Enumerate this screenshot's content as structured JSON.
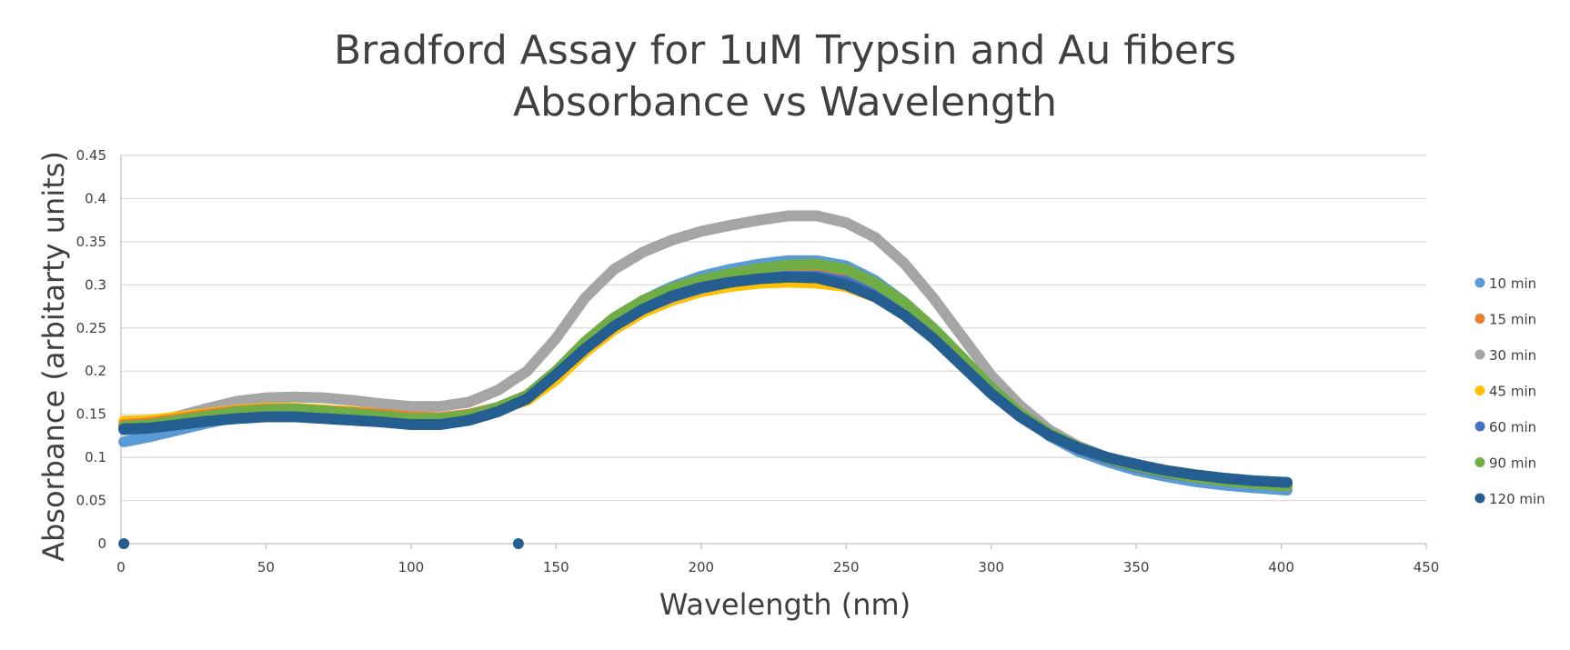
{
  "chart_data": {
    "type": "scatter",
    "title": [
      "Bradford Assay for 1uM Trypsin and Au fibers",
      "Absorbance vs Wavelength"
    ],
    "xlabel": "Wavelength (nm)",
    "ylabel": "Absorbance (arbitarty units)",
    "xlim": [
      0,
      450
    ],
    "ylim": [
      0,
      0.45
    ],
    "xticks": [
      "0",
      "50",
      "100",
      "150",
      "200",
      "250",
      "300",
      "350",
      "400",
      "450"
    ],
    "yticks": [
      "0",
      "0.05",
      "0.1",
      "0.15",
      "0.2",
      "0.25",
      "0.3",
      "0.35",
      "0.4",
      "0.45"
    ],
    "grid": true,
    "legend_position": "right",
    "series": [
      {
        "name": "10 min",
        "color": "#5b9bd5",
        "x": [
          1,
          10,
          20,
          30,
          40,
          50,
          60,
          70,
          80,
          90,
          100,
          110,
          120,
          130,
          140,
          150,
          160,
          170,
          180,
          190,
          200,
          210,
          220,
          230,
          240,
          250,
          260,
          270,
          280,
          290,
          300,
          310,
          320,
          330,
          340,
          350,
          360,
          370,
          380,
          390,
          402
        ],
        "y": [
          0.118,
          0.124,
          0.132,
          0.14,
          0.147,
          0.15,
          0.15,
          0.148,
          0.146,
          0.143,
          0.14,
          0.14,
          0.145,
          0.155,
          0.172,
          0.2,
          0.232,
          0.26,
          0.282,
          0.298,
          0.31,
          0.318,
          0.324,
          0.328,
          0.328,
          0.322,
          0.305,
          0.28,
          0.248,
          0.215,
          0.18,
          0.15,
          0.125,
          0.107,
          0.095,
          0.085,
          0.078,
          0.072,
          0.068,
          0.065,
          0.062
        ]
      },
      {
        "name": "15 min",
        "color": "#ed7d31",
        "x": [
          1,
          10,
          20,
          30,
          40,
          50,
          60,
          70,
          80,
          90,
          100,
          110,
          120,
          130,
          140,
          150,
          160,
          170,
          180,
          190,
          200,
          210,
          220,
          230,
          240,
          250,
          260,
          270,
          280,
          290,
          300,
          310,
          320,
          330,
          340,
          350,
          360,
          370,
          380,
          390,
          402
        ],
        "y": [
          0.138,
          0.14,
          0.145,
          0.15,
          0.154,
          0.156,
          0.156,
          0.154,
          0.152,
          0.15,
          0.147,
          0.146,
          0.15,
          0.158,
          0.172,
          0.198,
          0.228,
          0.255,
          0.275,
          0.29,
          0.3,
          0.307,
          0.312,
          0.314,
          0.314,
          0.31,
          0.298,
          0.276,
          0.248,
          0.215,
          0.18,
          0.15,
          0.127,
          0.11,
          0.098,
          0.089,
          0.082,
          0.077,
          0.073,
          0.07,
          0.067
        ]
      },
      {
        "name": "30 min",
        "color": "#a5a5a5",
        "x": [
          1,
          10,
          20,
          30,
          40,
          50,
          60,
          70,
          80,
          90,
          100,
          110,
          120,
          130,
          140,
          150,
          160,
          170,
          180,
          190,
          200,
          210,
          220,
          230,
          240,
          250,
          260,
          270,
          280,
          290,
          300,
          310,
          320,
          330,
          340,
          350,
          360,
          370,
          380,
          390,
          402
        ],
        "y": [
          0.134,
          0.14,
          0.148,
          0.157,
          0.165,
          0.169,
          0.17,
          0.169,
          0.166,
          0.162,
          0.159,
          0.159,
          0.164,
          0.178,
          0.2,
          0.238,
          0.285,
          0.318,
          0.338,
          0.352,
          0.362,
          0.369,
          0.375,
          0.38,
          0.38,
          0.372,
          0.355,
          0.325,
          0.285,
          0.24,
          0.195,
          0.16,
          0.132,
          0.113,
          0.1,
          0.09,
          0.083,
          0.077,
          0.073,
          0.07,
          0.068
        ]
      },
      {
        "name": "45 min",
        "color": "#ffc000",
        "x": [
          1,
          10,
          20,
          30,
          40,
          50,
          60,
          70,
          80,
          90,
          100,
          110,
          120,
          130,
          140,
          150,
          160,
          170,
          180,
          190,
          200,
          210,
          220,
          230,
          240,
          250,
          260,
          270,
          280,
          290,
          300,
          310,
          320,
          330,
          340,
          350,
          360,
          370,
          380,
          390,
          402
        ],
        "y": [
          0.142,
          0.143,
          0.147,
          0.151,
          0.155,
          0.157,
          0.157,
          0.155,
          0.153,
          0.15,
          0.147,
          0.146,
          0.149,
          0.156,
          0.166,
          0.19,
          0.222,
          0.248,
          0.268,
          0.282,
          0.292,
          0.298,
          0.302,
          0.303,
          0.302,
          0.298,
          0.286,
          0.268,
          0.24,
          0.208,
          0.175,
          0.148,
          0.126,
          0.11,
          0.098,
          0.089,
          0.082,
          0.077,
          0.073,
          0.07,
          0.067
        ]
      },
      {
        "name": "60 min",
        "color": "#4472c4",
        "x": [
          1,
          10,
          20,
          30,
          40,
          50,
          60,
          70,
          80,
          90,
          100,
          110,
          120,
          130,
          140,
          150,
          160,
          170,
          180,
          190,
          200,
          210,
          220,
          230,
          240,
          250,
          260,
          270,
          280,
          290,
          300,
          310,
          320,
          330,
          340,
          350,
          360,
          370,
          380,
          390,
          402
        ],
        "y": [
          0.132,
          0.134,
          0.139,
          0.144,
          0.148,
          0.15,
          0.15,
          0.148,
          0.146,
          0.144,
          0.141,
          0.141,
          0.145,
          0.155,
          0.17,
          0.198,
          0.228,
          0.252,
          0.272,
          0.286,
          0.296,
          0.303,
          0.308,
          0.31,
          0.31,
          0.304,
          0.29,
          0.27,
          0.244,
          0.212,
          0.178,
          0.149,
          0.126,
          0.11,
          0.098,
          0.089,
          0.082,
          0.077,
          0.073,
          0.071,
          0.069
        ]
      },
      {
        "name": "90 min",
        "color": "#70ad47",
        "x": [
          1,
          10,
          20,
          30,
          40,
          50,
          60,
          70,
          80,
          90,
          100,
          110,
          120,
          130,
          140,
          150,
          160,
          170,
          180,
          190,
          200,
          210,
          220,
          230,
          240,
          250,
          260,
          270,
          280,
          290,
          300,
          310,
          320,
          330,
          340,
          350,
          360,
          370,
          380,
          390,
          402
        ],
        "y": [
          0.136,
          0.138,
          0.143,
          0.148,
          0.153,
          0.155,
          0.156,
          0.154,
          0.151,
          0.148,
          0.145,
          0.145,
          0.149,
          0.158,
          0.172,
          0.2,
          0.234,
          0.262,
          0.282,
          0.296,
          0.306,
          0.313,
          0.319,
          0.323,
          0.324,
          0.318,
          0.302,
          0.28,
          0.25,
          0.216,
          0.181,
          0.151,
          0.128,
          0.112,
          0.099,
          0.09,
          0.083,
          0.077,
          0.073,
          0.07,
          0.067
        ]
      },
      {
        "name": "120 min",
        "color": "#255e91",
        "x": [
          1,
          10,
          20,
          30,
          40,
          50,
          60,
          70,
          80,
          90,
          100,
          110,
          120,
          130,
          140,
          150,
          160,
          170,
          180,
          190,
          200,
          210,
          220,
          230,
          240,
          250,
          260,
          270,
          280,
          290,
          300,
          310,
          320,
          330,
          340,
          350,
          360,
          370,
          380,
          390,
          402
        ],
        "y": [
          0.133,
          0.134,
          0.138,
          0.142,
          0.145,
          0.147,
          0.147,
          0.145,
          0.143,
          0.141,
          0.138,
          0.138,
          0.143,
          0.153,
          0.168,
          0.196,
          0.226,
          0.252,
          0.272,
          0.287,
          0.297,
          0.303,
          0.307,
          0.309,
          0.308,
          0.3,
          0.286,
          0.265,
          0.238,
          0.206,
          0.174,
          0.147,
          0.126,
          0.111,
          0.1,
          0.092,
          0.085,
          0.08,
          0.076,
          0.073,
          0.071
        ]
      }
    ],
    "extra_points": [
      {
        "x": 1,
        "y": 0,
        "color": "#255e91"
      },
      {
        "x": 137,
        "y": 0,
        "color": "#255e91"
      }
    ]
  }
}
